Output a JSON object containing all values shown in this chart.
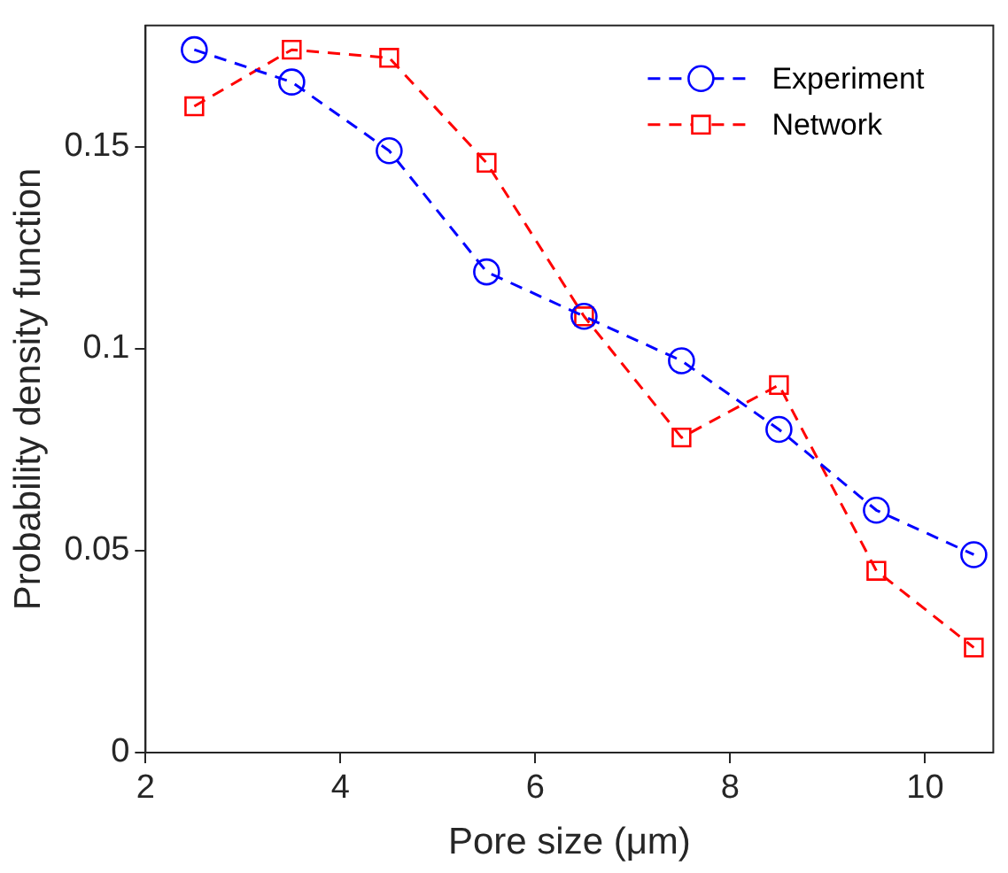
{
  "chart_data": {
    "type": "line",
    "xlabel": "Pore size (μm)",
    "ylabel": "Probability density function",
    "x": [
      2.5,
      3.5,
      4.5,
      5.5,
      6.5,
      7.5,
      8.5,
      9.5,
      10.5
    ],
    "series": [
      {
        "name": "Experiment",
        "color": "#0000ff",
        "marker": "circle",
        "values": [
          0.174,
          0.166,
          0.149,
          0.119,
          0.108,
          0.097,
          0.08,
          0.06,
          0.049
        ]
      },
      {
        "name": "Network",
        "color": "#ff0000",
        "marker": "square",
        "values": [
          0.16,
          0.174,
          0.172,
          0.146,
          0.108,
          0.078,
          0.091,
          0.045,
          0.026
        ]
      }
    ],
    "xlim": [
      2,
      10.7
    ],
    "xticks": [
      2,
      4,
      6,
      8,
      10
    ],
    "ylim": [
      0,
      0.18
    ],
    "yticks": [
      0,
      0.05,
      0.1,
      0.15
    ],
    "line_style": "dashed",
    "legend": "top right",
    "grid": false
  }
}
